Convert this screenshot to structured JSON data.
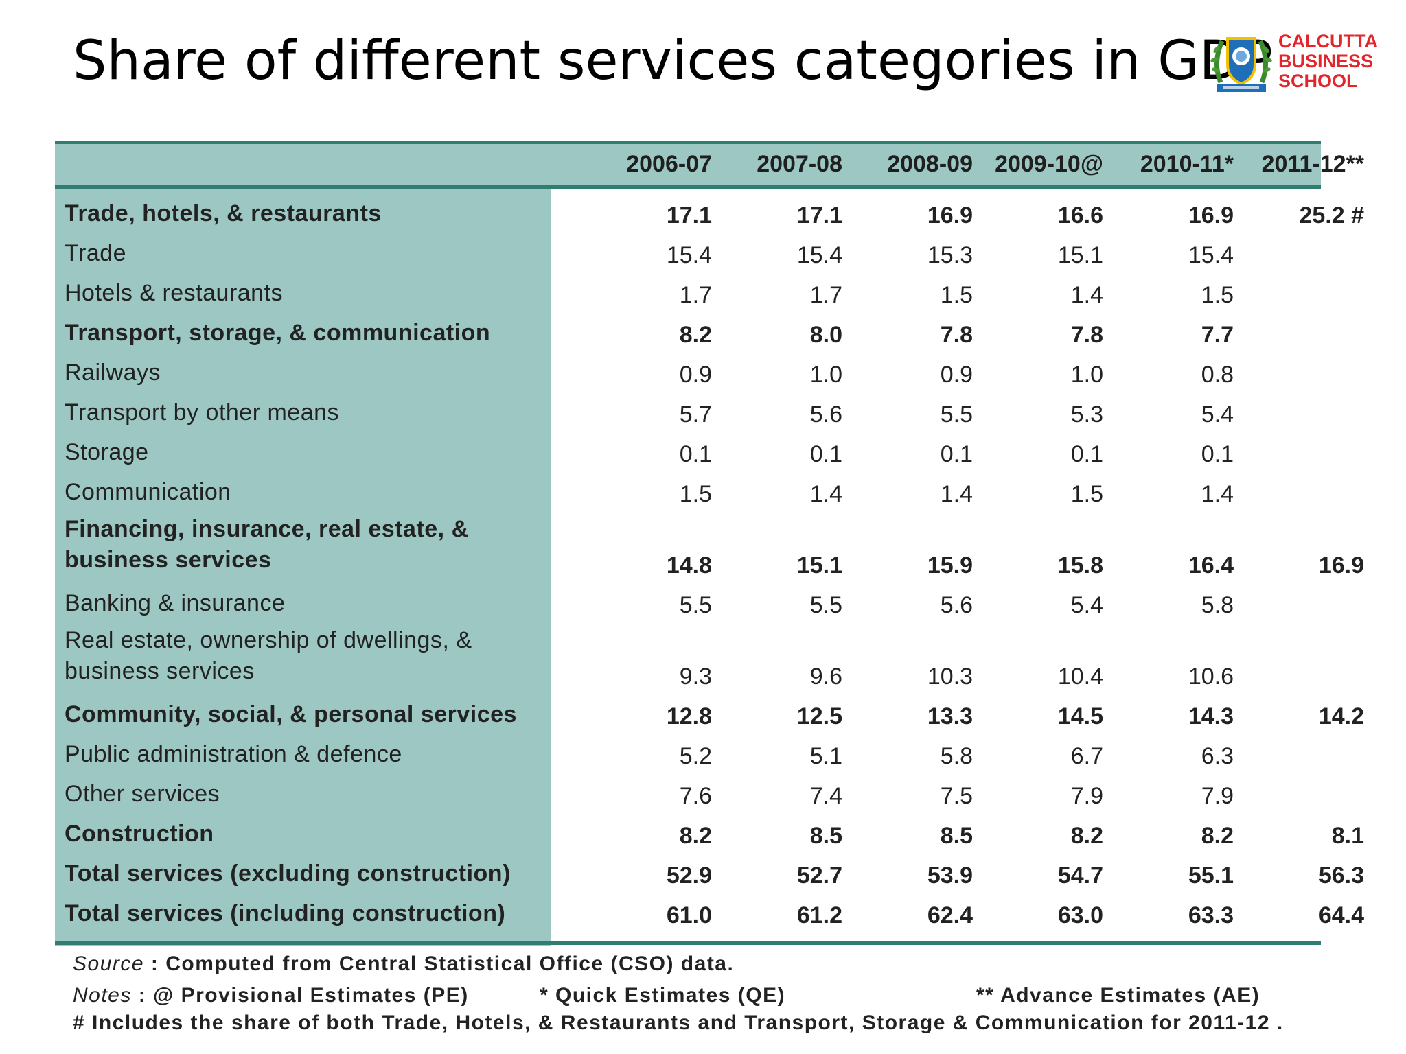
{
  "slide": {
    "title": "Share of different services categories in GDP",
    "logo_lines": [
      "CALCUTTA",
      "BUSINESS",
      "SCHOOL"
    ]
  },
  "table": {
    "columns": [
      "2006-07",
      "2007-08",
      "2008-09",
      "2009-10@",
      "2010-11*",
      "2011-12**"
    ],
    "rows": [
      {
        "label": "Trade, hotels, &  restaurants",
        "bold": true,
        "values": [
          "17.1",
          "17.1",
          "16.9",
          "16.6",
          "16.9",
          "25.2 #"
        ]
      },
      {
        "label": "Trade",
        "bold": false,
        "values": [
          "15.4",
          "15.4",
          "15.3",
          "15.1",
          "15.4",
          ""
        ]
      },
      {
        "label": "Hotels  &  restaurants",
        "bold": false,
        "values": [
          "1.7",
          "1.7",
          "1.5",
          "1.4",
          "1.5",
          ""
        ]
      },
      {
        "label": "Transport, storage, & communication",
        "bold": true,
        "values": [
          "8.2",
          "8.0",
          "7.8",
          "7.8",
          "7.7",
          ""
        ]
      },
      {
        "label": "Railways",
        "bold": false,
        "values": [
          "0.9",
          "1.0",
          "0.9",
          "1.0",
          "0.8",
          ""
        ]
      },
      {
        "label": "Transport  by  other  means",
        "bold": false,
        "values": [
          "5.7",
          "5.6",
          "5.5",
          "5.3",
          "5.4",
          ""
        ]
      },
      {
        "label": "Storage",
        "bold": false,
        "values": [
          "0.1",
          "0.1",
          "0.1",
          "0.1",
          "0.1",
          ""
        ]
      },
      {
        "label": "Communication",
        "bold": false,
        "values": [
          "1.5",
          "1.4",
          "1.4",
          "1.5",
          "1.4",
          ""
        ]
      },
      {
        "label": "Financing, insurance, real estate,  & business  services",
        "bold": true,
        "values": [
          "14.8",
          "15.1",
          "15.9",
          "15.8",
          "16.4",
          "16.9"
        ]
      },
      {
        "label": "Banking  &  insurance",
        "bold": false,
        "values": [
          "5.5",
          "5.5",
          "5.6",
          "5.4",
          "5.8",
          ""
        ]
      },
      {
        "label": "Real  estate,  ownership  of  dwellings,  & business  services",
        "bold": false,
        "values": [
          "9.3",
          "9.6",
          "10.3",
          "10.4",
          "10.6",
          ""
        ]
      },
      {
        "label": "Community, social, & personal services",
        "bold": true,
        "values": [
          "12.8",
          "12.5",
          "13.3",
          "14.5",
          "14.3",
          "14.2"
        ]
      },
      {
        "label": "Public  administration  &  defence",
        "bold": false,
        "values": [
          "5.2",
          "5.1",
          "5.8",
          "6.7",
          "6.3",
          ""
        ]
      },
      {
        "label": "Other  services",
        "bold": false,
        "values": [
          "7.6",
          "7.4",
          "7.5",
          "7.9",
          "7.9",
          ""
        ]
      },
      {
        "label": "Construction",
        "bold": true,
        "values": [
          "8.2",
          "8.5",
          "8.5",
          "8.2",
          "8.2",
          "8.1"
        ]
      },
      {
        "label": "Total services (excluding construction)",
        "bold": true,
        "values": [
          "52.9",
          "52.7",
          "53.9",
          "54.7",
          "55.1",
          "56.3"
        ]
      },
      {
        "label": "Total services (including construction)",
        "bold": true,
        "values": [
          "61.0",
          "61.2",
          "62.4",
          "63.0",
          "63.3",
          "64.4"
        ]
      }
    ]
  },
  "notes": {
    "source_label": "Source",
    "source_text": " :  Computed  from  Central  Statistical  Office  (CSO)  data.",
    "notes_label": "Notes",
    "note_pe": " :  @  Provisional  Estimates  (PE)",
    "note_qe": "*  Quick  Estimates  (QE)",
    "note_ae": "**  Advance  Estimates  (AE)",
    "hash_note": "#  Includes   the  share  of  both  Trade,  Hotels,  &  Restaurants  and  Transport,  Storage  &  Communication  for  2011-12 ."
  }
}
